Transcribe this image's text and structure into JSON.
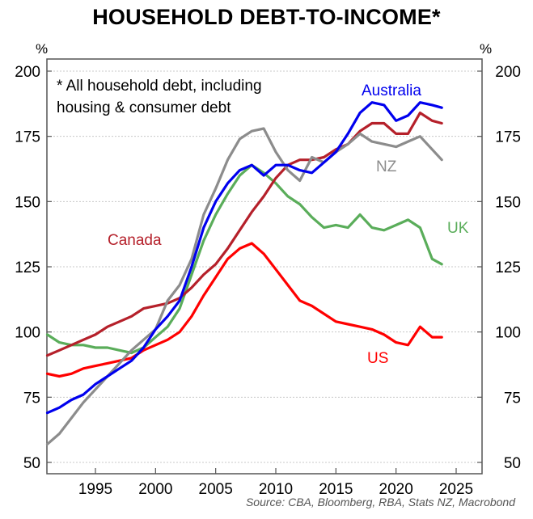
{
  "title": "HOUSEHOLD DEBT-TO-INCOME*",
  "note_line1": "*  All household debt, including",
  "note_line2": "housing & consumer debt",
  "source": "Source: CBA, Bloomberg, RBA, Stats NZ, Macrobond",
  "axis": {
    "left_unit": "%",
    "right_unit": "%",
    "y_ticks": [
      200,
      175,
      150,
      125,
      100,
      75,
      50
    ],
    "x_ticks": [
      1995,
      2000,
      2005,
      2010,
      2015,
      2020,
      2025
    ]
  },
  "labels": {
    "australia": "Australia",
    "nz": "NZ",
    "uk": "UK",
    "canada": "Canada",
    "us": "US"
  },
  "colors": {
    "australia": "#0000ee",
    "nz": "#8c8c8c",
    "uk": "#5aad5a",
    "canada": "#b5202a",
    "us": "#ff0000"
  },
  "chart_data": {
    "type": "line",
    "title": "HOUSEHOLD DEBT-TO-INCOME*",
    "subtitle": "* All household debt, including housing & consumer debt",
    "xlabel": "",
    "ylabel": "%",
    "xlim": [
      1991,
      2025.5
    ],
    "ylim": [
      50,
      200
    ],
    "grid": true,
    "legend_position": "inline labels",
    "x": [
      1991,
      1992,
      1993,
      1994,
      1995,
      1996,
      1997,
      1998,
      1999,
      2000,
      2001,
      2002,
      2003,
      2004,
      2005,
      2006,
      2007,
      2008,
      2009,
      2010,
      2011,
      2012,
      2013,
      2014,
      2015,
      2016,
      2017,
      2018,
      2019,
      2020,
      2021,
      2022,
      2023,
      2023.8
    ],
    "series": [
      {
        "name": "Australia",
        "values": [
          69,
          71,
          74,
          76,
          80,
          83,
          86,
          89,
          94,
          101,
          106,
          112,
          125,
          140,
          150,
          157,
          162,
          164,
          160,
          164,
          164,
          162,
          161,
          165,
          169,
          176,
          184,
          188,
          187,
          181,
          183,
          188,
          187,
          186
        ]
      },
      {
        "name": "NZ",
        "values": [
          57,
          61,
          67,
          73,
          78,
          83,
          88,
          93,
          97,
          101,
          112,
          118,
          128,
          145,
          155,
          166,
          174,
          177,
          178,
          169,
          162,
          158,
          167,
          165,
          169,
          172,
          176,
          173,
          172,
          171,
          173,
          175,
          170,
          166
        ]
      },
      {
        "name": "UK",
        "values": [
          99,
          96,
          95,
          95,
          94,
          94,
          93,
          92,
          94,
          98,
          102,
          109,
          122,
          135,
          145,
          153,
          160,
          164,
          161,
          157,
          152,
          149,
          144,
          140,
          141,
          140,
          145,
          140,
          139,
          141,
          143,
          140,
          128,
          126
        ]
      },
      {
        "name": "Canada",
        "values": [
          91,
          93,
          95,
          97,
          99,
          102,
          104,
          106,
          109,
          110,
          111,
          113,
          117,
          122,
          126,
          132,
          139,
          146,
          152,
          159,
          164,
          166,
          166,
          167,
          170,
          172,
          177,
          180,
          180,
          176,
          176,
          184,
          181,
          180
        ]
      },
      {
        "name": "US",
        "values": [
          84,
          83,
          84,
          86,
          87,
          88,
          89,
          90,
          93,
          95,
          97,
          100,
          106,
          114,
          121,
          128,
          132,
          134,
          130,
          124,
          118,
          112,
          110,
          107,
          104,
          103,
          102,
          101,
          99,
          96,
          95,
          102,
          98,
          98
        ]
      }
    ]
  }
}
